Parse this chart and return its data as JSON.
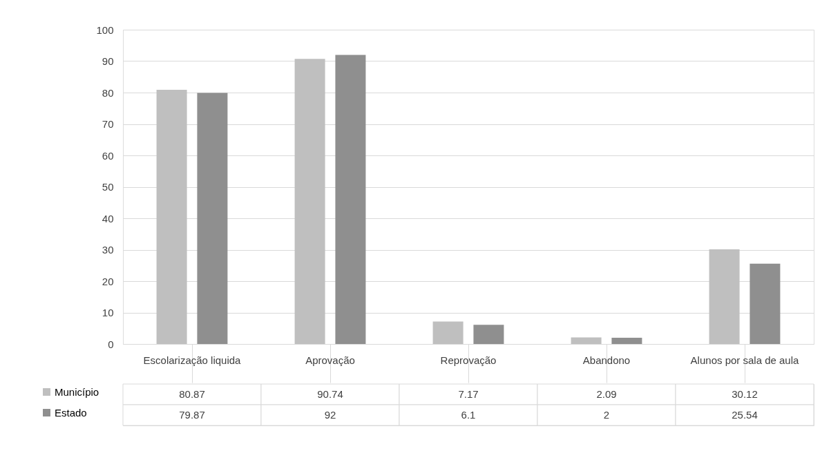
{
  "chart_data": {
    "type": "bar",
    "categories": [
      "Escolarização liquida",
      "Aprovação",
      "Reprovação",
      "Abandono",
      "Alunos por sala de aula"
    ],
    "series": [
      {
        "name": "Município",
        "color": "#bfbfbf",
        "values": [
          80.87,
          90.74,
          7.17,
          2.09,
          30.12
        ]
      },
      {
        "name": "Estado",
        "color": "#8f8f8f",
        "values": [
          79.87,
          92,
          6.1,
          2,
          25.54
        ]
      }
    ],
    "ylim": [
      0,
      100
    ],
    "yticks": [
      0,
      10,
      20,
      30,
      40,
      50,
      60,
      70,
      80,
      90,
      100
    ],
    "grid": "y",
    "legend": "bottom left",
    "data_labels": true
  }
}
